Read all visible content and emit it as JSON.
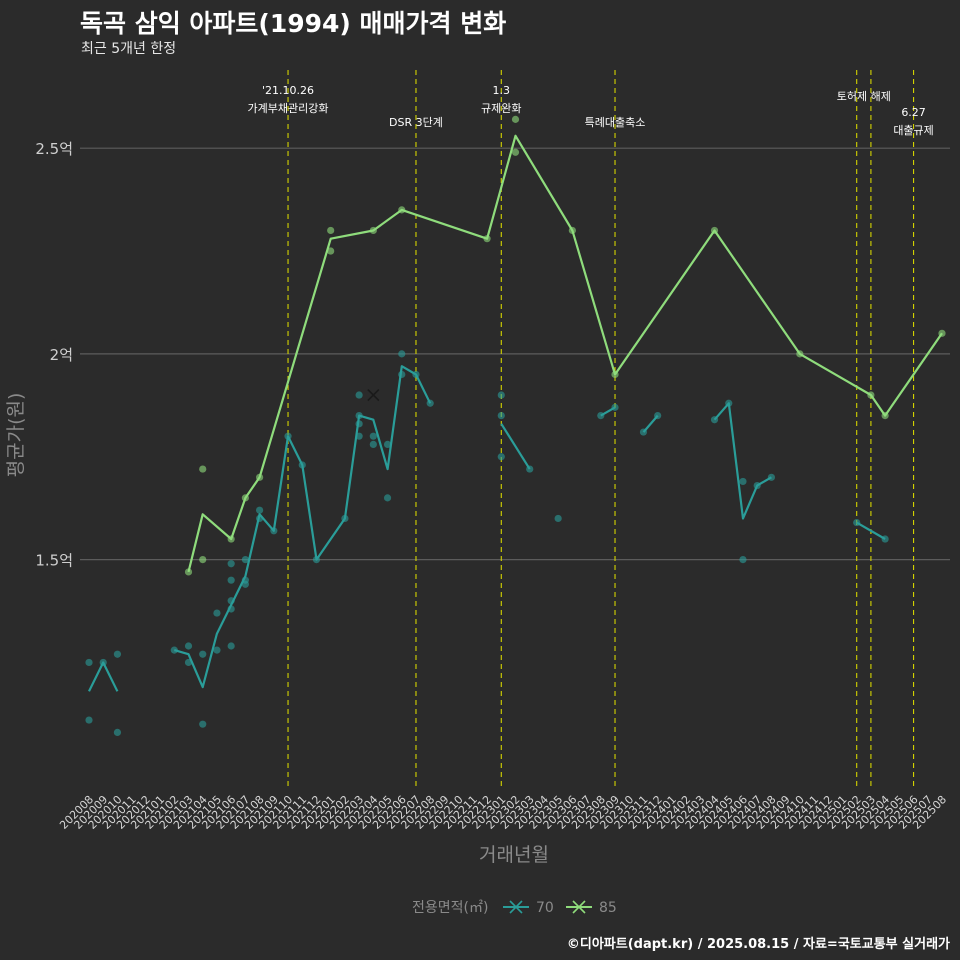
{
  "title": "독곡 삼익 아파트(1994) 매매가격 변화",
  "subtitle": "최근 5개년 한정",
  "caption": "©디아파트(dapt.kr) / 2025.08.15 / 자료=국토교통부 실거래가",
  "chart_data": {
    "type": "line",
    "xlabel": "거래년월",
    "ylabel": "평균가(원)",
    "ylim": [
      0.94,
      2.69
    ],
    "yticks": [
      {
        "value": 1.5,
        "label": "1.5억"
      },
      {
        "value": 2.0,
        "label": "2억"
      },
      {
        "value": 2.5,
        "label": "2.5억"
      }
    ],
    "x_categories": [
      "202008",
      "202009",
      "202010",
      "202011",
      "202012",
      "202101",
      "202102",
      "202103",
      "202104",
      "202105",
      "202106",
      "202107",
      "202108",
      "202109",
      "202110",
      "202111",
      "202112",
      "202201",
      "202202",
      "202203",
      "202204",
      "202205",
      "202206",
      "202207",
      "202208",
      "202209",
      "202210",
      "202211",
      "202212",
      "202301",
      "202302",
      "202303",
      "202304",
      "202305",
      "202306",
      "202307",
      "202308",
      "202309",
      "202310",
      "202311",
      "202312",
      "202401",
      "202402",
      "202403",
      "202404",
      "202405",
      "202406",
      "202407",
      "202408",
      "202409",
      "202410",
      "202411",
      "202412",
      "202501",
      "202502",
      "202503",
      "202504",
      "202505",
      "202506",
      "202507",
      "202508"
    ],
    "legend": {
      "title": "전용면적(㎡)",
      "position": "bottom"
    },
    "grid": true,
    "events": [
      {
        "x": "202110",
        "lines": [
          "'21.10.26",
          "가계부채관리강화"
        ],
        "row": 1
      },
      {
        "x": "202207",
        "lines": [
          "DSR 3단계"
        ],
        "row": 2
      },
      {
        "x": "202301",
        "lines": [
          "1.3",
          "규제완화"
        ],
        "row": 1
      },
      {
        "x": "202309",
        "lines": [
          "특례대출축소"
        ],
        "row": 2
      },
      {
        "x": "202502",
        "lines": [],
        "row": 1
      },
      {
        "x": "202503",
        "lines": [
          "토허제 해제"
        ],
        "row": 1,
        "anchor": "202502.5"
      },
      {
        "x": "202506",
        "lines": [
          "6.27",
          "대출규제"
        ],
        "row": 1.6
      }
    ],
    "series": [
      {
        "name": "70",
        "color": "#2a9d99",
        "segments": [
          [
            [
              "202008",
              1.18
            ],
            [
              "202009",
              1.25
            ],
            [
              "202010",
              1.18
            ]
          ],
          [
            [
              "202102",
              1.28
            ],
            [
              "202103",
              1.27
            ],
            [
              "202104",
              1.19
            ],
            [
              "202105",
              1.32
            ],
            [
              "202106",
              1.39
            ],
            [
              "202107",
              1.46
            ],
            [
              "202108",
              1.61
            ],
            [
              "202109",
              1.57
            ],
            [
              "202110",
              1.8
            ],
            [
              "202111",
              1.73
            ],
            [
              "202112",
              1.5
            ],
            [
              "202202",
              1.6
            ],
            [
              "202203",
              1.85
            ],
            [
              "202204",
              1.84
            ],
            [
              "202205",
              1.72
            ],
            [
              "202206",
              1.97
            ],
            [
              "202207",
              1.95
            ],
            [
              "202208",
              1.88
            ]
          ],
          [
            [
              "202301",
              1.83
            ],
            [
              "202303",
              1.72
            ]
          ],
          [
            [
              "202308",
              1.85
            ],
            [
              "202309",
              1.87
            ]
          ],
          [
            [
              "202311",
              1.81
            ],
            [
              "202312",
              1.85
            ]
          ],
          [
            [
              "202404",
              1.84
            ],
            [
              "202405",
              1.88
            ],
            [
              "202406",
              1.6
            ],
            [
              "202407",
              1.68
            ],
            [
              "202408",
              1.7
            ]
          ],
          [
            [
              "202502",
              1.59
            ],
            [
              "202504",
              1.55
            ]
          ]
        ],
        "points": [
          [
            "202008",
            1.25
          ],
          [
            "202008",
            1.11
          ],
          [
            "202009",
            1.25
          ],
          [
            "202010",
            1.27
          ],
          [
            "202010",
            1.08
          ],
          [
            "202102",
            1.28
          ],
          [
            "202103",
            1.29
          ],
          [
            "202103",
            1.25
          ],
          [
            "202104",
            1.27
          ],
          [
            "202104",
            1.1
          ],
          [
            "202105",
            1.37
          ],
          [
            "202105",
            1.28
          ],
          [
            "202106",
            1.49
          ],
          [
            "202106",
            1.45
          ],
          [
            "202106",
            1.4
          ],
          [
            "202106",
            1.38
          ],
          [
            "202106",
            1.29
          ],
          [
            "202107",
            1.5
          ],
          [
            "202107",
            1.45
          ],
          [
            "202107",
            1.44
          ],
          [
            "202108",
            1.62
          ],
          [
            "202108",
            1.6
          ],
          [
            "202109",
            1.57
          ],
          [
            "202110",
            1.8
          ],
          [
            "202111",
            1.73
          ],
          [
            "202112",
            1.5
          ],
          [
            "202202",
            1.6
          ],
          [
            "202203",
            1.9
          ],
          [
            "202203",
            1.85
          ],
          [
            "202203",
            1.83
          ],
          [
            "202203",
            1.8
          ],
          [
            "202204",
            1.8
          ],
          [
            "202204",
            1.78
          ],
          [
            "202205",
            1.78
          ],
          [
            "202205",
            1.65
          ],
          [
            "202206",
            2.0
          ],
          [
            "202206",
            1.95
          ],
          [
            "202207",
            1.95
          ],
          [
            "202208",
            1.88
          ],
          [
            "202301",
            1.9
          ],
          [
            "202301",
            1.85
          ],
          [
            "202301",
            1.75
          ],
          [
            "202303",
            1.72
          ],
          [
            "202305",
            1.6
          ],
          [
            "202308",
            1.85
          ],
          [
            "202309",
            1.87
          ],
          [
            "202311",
            1.81
          ],
          [
            "202312",
            1.85
          ],
          [
            "202404",
            1.84
          ],
          [
            "202405",
            1.88
          ],
          [
            "202406",
            1.69
          ],
          [
            "202406",
            1.5
          ],
          [
            "202407",
            1.68
          ],
          [
            "202408",
            1.7
          ],
          [
            "202502",
            1.59
          ],
          [
            "202504",
            1.55
          ]
        ],
        "markers": [
          [
            "202204",
            1.9
          ]
        ]
      },
      {
        "name": "85",
        "color": "#8fdc7c",
        "segments": [
          [
            [
              "202103",
              1.47
            ],
            [
              "202104",
              1.61
            ],
            [
              "202106",
              1.55
            ],
            [
              "202107",
              1.65
            ],
            [
              "202108",
              1.7
            ],
            [
              "202201",
              2.28
            ],
            [
              "202204",
              2.3
            ],
            [
              "202206",
              2.35
            ],
            [
              "202212",
              2.28
            ],
            [
              "202302",
              2.53
            ],
            [
              "202306",
              2.3
            ],
            [
              "202309",
              1.95
            ],
            [
              "202404",
              2.3
            ],
            [
              "202410",
              2.0
            ],
            [
              "202503",
              1.9
            ],
            [
              "202504",
              1.85
            ],
            [
              "202508",
              2.05
            ]
          ]
        ],
        "points": [
          [
            "202103",
            1.47
          ],
          [
            "202104",
            1.72
          ],
          [
            "202104",
            1.5
          ],
          [
            "202106",
            1.55
          ],
          [
            "202107",
            1.65
          ],
          [
            "202108",
            1.7
          ],
          [
            "202201",
            2.3
          ],
          [
            "202201",
            2.25
          ],
          [
            "202204",
            2.3
          ],
          [
            "202206",
            2.35
          ],
          [
            "202212",
            2.28
          ],
          [
            "202302",
            2.57
          ],
          [
            "202302",
            2.49
          ],
          [
            "202306",
            2.3
          ],
          [
            "202309",
            1.95
          ],
          [
            "202404",
            2.3
          ],
          [
            "202410",
            2.0
          ],
          [
            "202503",
            1.9
          ],
          [
            "202504",
            1.85
          ],
          [
            "202508",
            2.05
          ]
        ],
        "markers": []
      }
    ]
  }
}
